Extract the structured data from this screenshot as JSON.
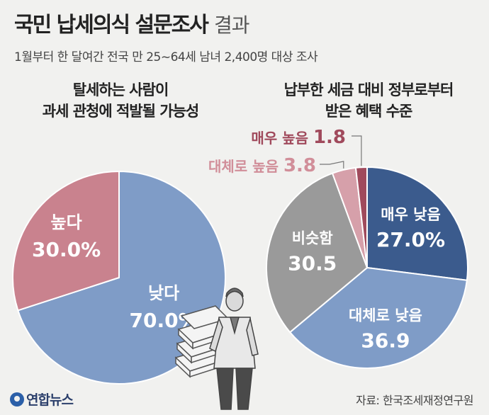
{
  "header": {
    "title_main": "국민 납세의식 설문조사",
    "title_suffix": "결과",
    "subtitle": "1월부터 한 달여간 전국 만 25~64세 남녀 2,400명 대상 조사"
  },
  "footer": {
    "logo": "연합뉴스",
    "source": "자료: 한국조세재정연구원"
  },
  "colors": {
    "blue_light": "#7f9cc7",
    "pink": "#c9828e",
    "blue_dark": "#3b5b8d",
    "gray": "#9a9a9a",
    "pink_light": "#d6a0aa",
    "maroon": "#a04a5c"
  },
  "chart_data": [
    {
      "type": "pie",
      "title_lines": [
        "탈세하는 사람이",
        "과세 관청에 적발될 가능성"
      ],
      "slices": [
        {
          "label": "낮다",
          "value": 70.0,
          "value_text": "70.0%",
          "color": "#7f9cc7"
        },
        {
          "label": "높다",
          "value": 30.0,
          "value_text": "30.0%",
          "color": "#c9828e"
        }
      ]
    },
    {
      "type": "pie",
      "title_lines": [
        "납부한 세금 대비 정부로부터",
        "받은 혜택 수준"
      ],
      "slices": [
        {
          "label": "매우 낮음",
          "value": 27.0,
          "value_text": "27.0%",
          "color": "#3b5b8d"
        },
        {
          "label": "대체로 낮음",
          "value": 36.9,
          "value_text": "36.9",
          "color": "#7f9cc7"
        },
        {
          "label": "비슷함",
          "value": 30.5,
          "value_text": "30.5",
          "color": "#9a9a9a"
        },
        {
          "label": "대체로 높음",
          "value": 3.8,
          "value_text": "3.8",
          "color": "#d6a0aa"
        },
        {
          "label": "매우 높음",
          "value": 1.8,
          "value_text": "1.8",
          "color": "#a04a5c"
        }
      ]
    }
  ]
}
